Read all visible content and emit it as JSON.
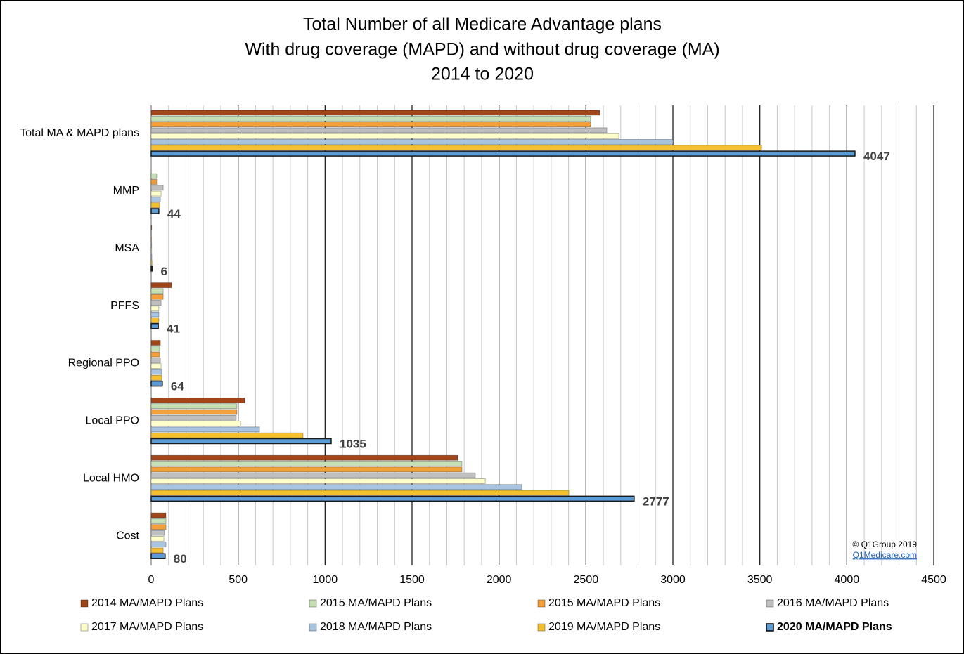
{
  "chart_data": {
    "type": "barh",
    "title": [
      "Total Number of all Medicare Advantage plans",
      "With drug coverage (MAPD) and without drug coverage (MA)",
      "2014 to 2020"
    ],
    "categories": [
      "Total MA & MAPD plans",
      "MMP",
      "MSA",
      "PFFS",
      "Regional PPO",
      "Local PPO",
      "Local HMO",
      "Cost"
    ],
    "series": [
      {
        "name": "2014 MA/MAPD Plans",
        "color": "#a0461a",
        "values": [
          2580,
          0,
          3,
          117,
          53,
          538,
          1763,
          85
        ]
      },
      {
        "name": "2015 MA/MAPD Plans",
        "color": "#c5e0b4",
        "values": [
          2527,
          32,
          2,
          69,
          49,
          493,
          1787,
          85
        ]
      },
      {
        "name": "2015 MA/MAPD Plans",
        "color": "#f4a03a",
        "values": [
          2527,
          32,
          2,
          69,
          49,
          493,
          1787,
          85
        ]
      },
      {
        "name": "2016 MA/MAPD Plans",
        "color": "#bfbfbf",
        "values": [
          2620,
          69,
          3,
          57,
          53,
          489,
          1864,
          77
        ]
      },
      {
        "name": "2017 MA/MAPD Plans",
        "color": "#ffffcc",
        "values": [
          2689,
          57,
          3,
          44,
          57,
          514,
          1921,
          73
        ]
      },
      {
        "name": "2018 MA/MAPD Plans",
        "color": "#a9c4e0",
        "values": [
          3000,
          53,
          4,
          44,
          61,
          623,
          2131,
          85
        ]
      },
      {
        "name": "2019 MA/MAPD Plans",
        "color": "#f5c030",
        "values": [
          3510,
          49,
          5,
          44,
          61,
          873,
          2402,
          69
        ]
      },
      {
        "name": "2020 MA/MAPD Plans",
        "color": "#5b9bd5",
        "values": [
          4047,
          44,
          6,
          41,
          64,
          1035,
          2777,
          80
        ],
        "highlight": true,
        "show_values": true
      }
    ],
    "xlim": [
      0,
      4500
    ],
    "xticks": [
      0,
      500,
      1000,
      1500,
      2000,
      2500,
      3000,
      3500,
      4000,
      4500
    ],
    "grid": true,
    "minor_grid": true,
    "legend": "bottom",
    "annotations": [
      "© Q1Group 2019",
      "Q1Medicare.com"
    ]
  }
}
